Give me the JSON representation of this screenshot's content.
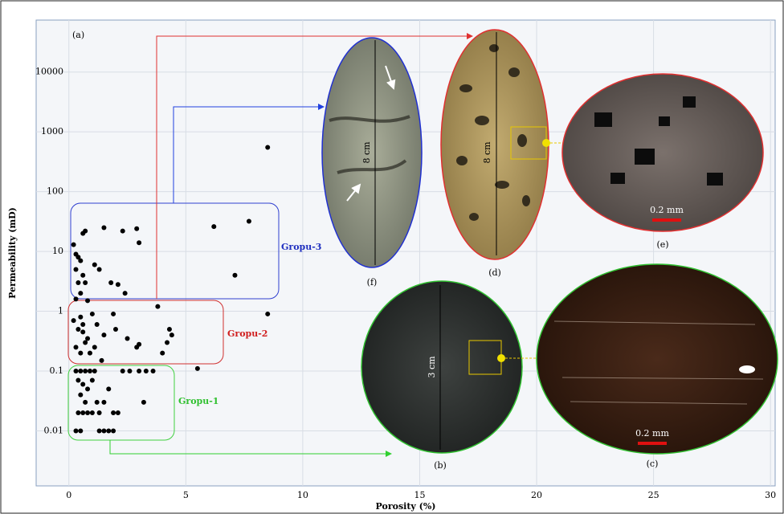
{
  "chart_data": {
    "type": "scatter",
    "x_label": "Porosity (%)",
    "y_label": "Permeability (mD)",
    "annotations": [
      "(a)",
      "Gropu-3",
      "Gropu-2",
      "Gropu-1"
    ],
    "xlim": [
      -1.4,
      30.2
    ],
    "xticks": [
      0,
      5,
      10,
      15,
      20,
      25,
      30
    ],
    "ylim": [
      0.0012,
      74000
    ],
    "yticks": [
      0.01,
      0.1,
      1,
      10,
      100,
      1000,
      10000
    ],
    "log_y": true,
    "grid": true,
    "color": "#000000",
    "x": [
      8.5,
      8.5,
      0.2,
      0.3,
      0.4,
      0.5,
      0.3,
      0.6,
      0.4,
      0.7,
      0.5,
      0.6,
      0.7,
      1.5,
      2.3,
      2.9,
      3.0,
      6.2,
      7.7,
      7.1,
      1.1,
      1.3,
      1.8,
      2.1,
      2.4,
      0.8,
      0.3,
      3.8,
      0.5,
      0.2,
      0.4,
      0.6,
      0.8,
      1.0,
      1.2,
      1.5,
      1.9,
      2.0,
      2.5,
      2.9,
      3.0,
      4.3,
      4.4,
      4.2,
      4.0,
      0.3,
      0.5,
      0.7,
      1.1,
      1.4,
      0.9,
      0.6,
      0.3,
      0.5,
      0.7,
      0.9,
      1.1,
      2.3,
      2.6,
      3.0,
      3.3,
      3.6,
      5.5,
      0.4,
      0.6,
      0.8,
      1.0,
      0.5,
      0.7,
      1.2,
      1.5,
      0.4,
      0.6,
      0.8,
      1.0,
      1.3,
      1.9,
      2.1,
      0.3,
      0.5,
      1.3,
      1.5,
      1.7,
      1.9,
      3.2,
      1.7
    ],
    "values": [
      550,
      0.9,
      13,
      9,
      8,
      7,
      5,
      4,
      3,
      3,
      2,
      20,
      22,
      25,
      22,
      24,
      14,
      26,
      32,
      4,
      6,
      5,
      3,
      2.8,
      2,
      1.5,
      1.6,
      1.2,
      0.8,
      0.7,
      0.5,
      0.45,
      0.35,
      0.9,
      0.6,
      0.4,
      0.9,
      0.5,
      0.35,
      0.25,
      0.28,
      0.5,
      0.4,
      0.3,
      0.2,
      0.25,
      0.2,
      0.3,
      0.25,
      0.15,
      0.2,
      0.6,
      0.1,
      0.1,
      0.1,
      0.1,
      0.1,
      0.1,
      0.1,
      0.1,
      0.1,
      0.1,
      0.11,
      0.07,
      0.06,
      0.05,
      0.07,
      0.04,
      0.03,
      0.03,
      0.03,
      0.02,
      0.02,
      0.02,
      0.02,
      0.02,
      0.02,
      0.02,
      0.01,
      0.01,
      0.01,
      0.01,
      0.01,
      0.01,
      0.03,
      0.05
    ]
  },
  "insets": [
    {
      "label": "(f)",
      "scale": "8 cm"
    },
    {
      "label": "(d)",
      "scale": "8 cm"
    },
    {
      "label": "(e)",
      "scale": "0.2 mm"
    },
    {
      "label": "(b)",
      "scale": "3 cm"
    },
    {
      "label": "(c)",
      "scale": "0.2 mm"
    }
  ]
}
